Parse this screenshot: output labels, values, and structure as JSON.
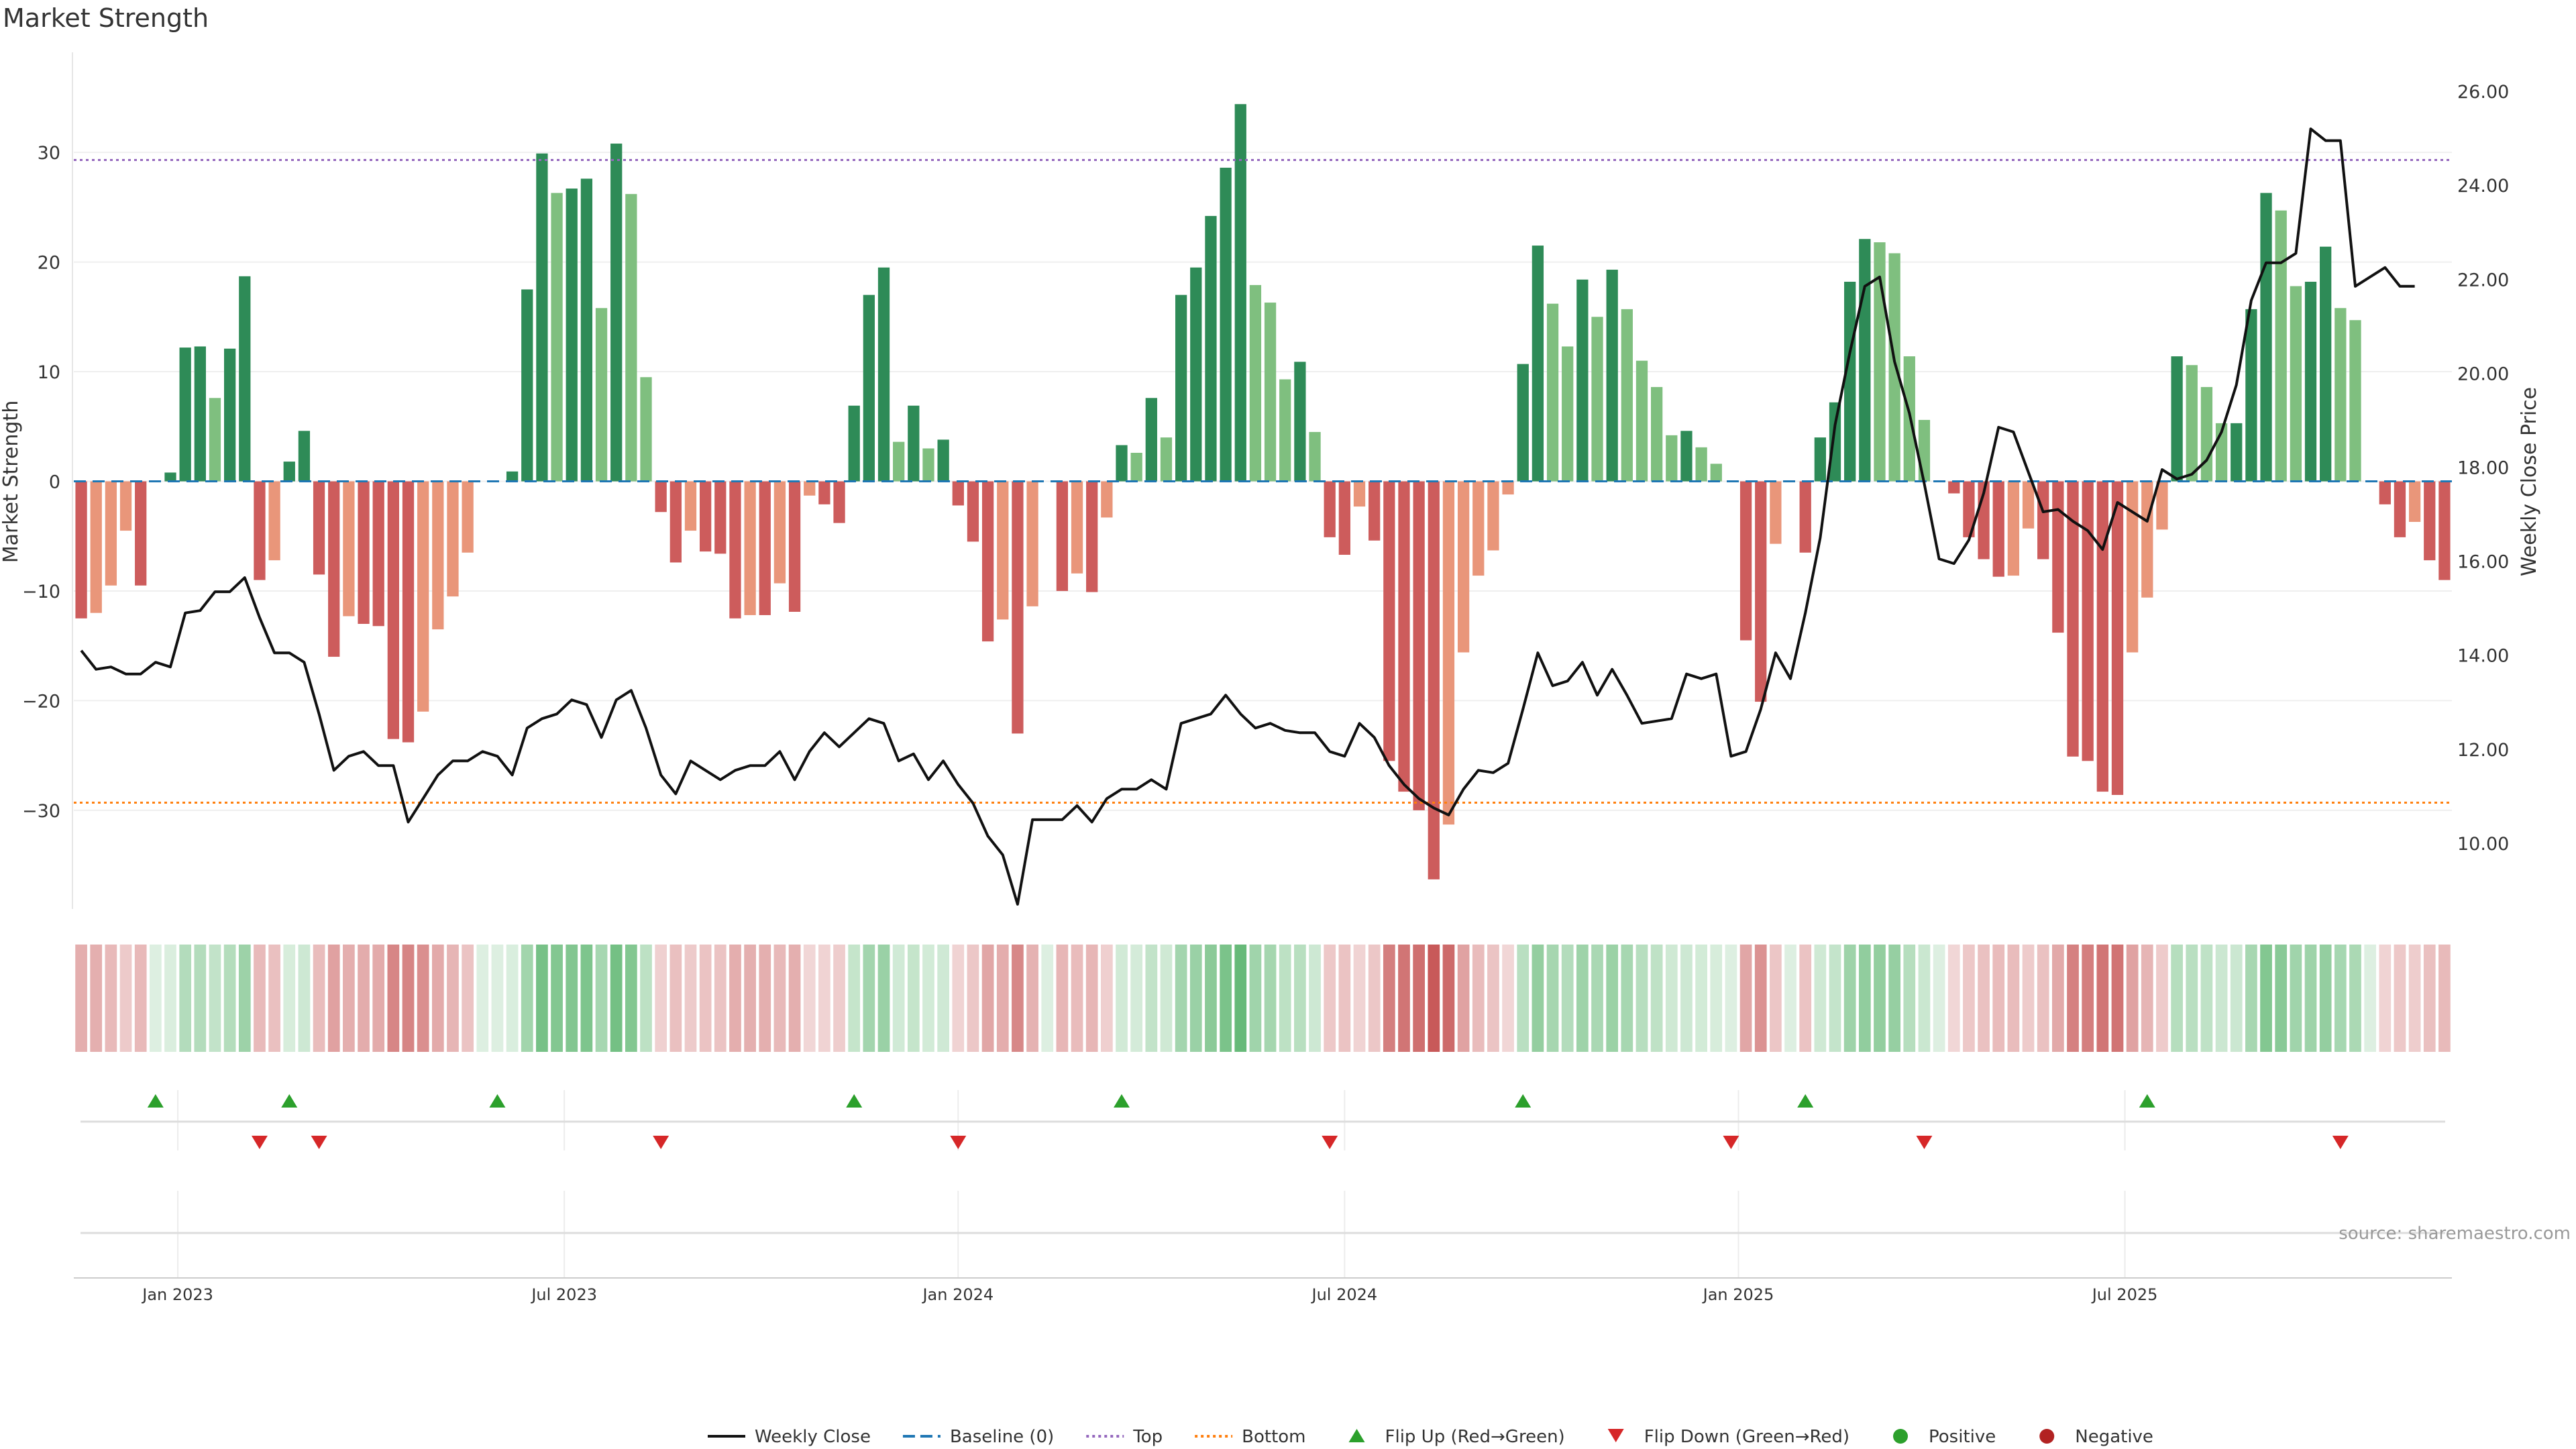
{
  "title": "Market Strength",
  "source_note": "source: sharemaestro.com",
  "colors": {
    "strong_green": "#2e8b57",
    "light_green": "#7fbf7f",
    "strong_red": "#cd5c5c",
    "light_red": "#e9967a",
    "price_line": "#111111",
    "baseline": "#1f77b4",
    "top_line": "#9467bd",
    "bottom_line": "#ff7f0e",
    "flip_up": "#2ca02c",
    "flip_down": "#d62728",
    "positive": "#2ca02c",
    "negative": "#b22222"
  },
  "chart_data": {
    "type": "bar",
    "title": "Market Strength",
    "ylabel": "Market Strength",
    "y2label": "Weekly Close Price",
    "ylim": [
      -39,
      39
    ],
    "y2lim": [
      8.6,
      26.8
    ],
    "yticks": [
      -30,
      -20,
      -10,
      0,
      10,
      20,
      30
    ],
    "y2ticks": [
      10,
      12,
      14,
      16,
      18,
      20,
      22,
      24,
      26
    ],
    "y2tick_labels": [
      "10.00",
      "12.00",
      "14.00",
      "16.00",
      "18.00",
      "20.00",
      "22.00",
      "24.00",
      "26.00"
    ],
    "top": 29.3,
    "bottom": -29.3,
    "x_tick_labels": [
      {
        "label": "Jan 2023",
        "week": 7
      },
      {
        "label": "Jul 2023",
        "week": 33
      },
      {
        "label": "Jan 2024",
        "week": 59.5
      },
      {
        "label": "Jul 2024",
        "week": 85.5
      },
      {
        "label": "Jan 2025",
        "week": 112
      },
      {
        "label": "Jul 2025",
        "week": 138
      }
    ],
    "strength": [
      -12.5,
      -12,
      -9.5,
      -4.5,
      -9.5,
      0,
      0.8,
      12.2,
      12.3,
      7.6,
      12.1,
      18.7,
      -9,
      -7.2,
      1.8,
      4.6,
      -8.5,
      -16,
      -12.3,
      -13,
      -13.2,
      -23.5,
      -23.8,
      -21,
      -13.5,
      -10.5,
      -6.5,
      0,
      0,
      0.9,
      17.5,
      29.9,
      26.3,
      26.7,
      27.6,
      15.8,
      30.8,
      26.2,
      9.5,
      -2.8,
      -7.4,
      -4.5,
      -6.4,
      -6.6,
      -12.5,
      -12.2,
      -12.2,
      -9.3,
      -11.9,
      -1.3,
      -2.1,
      -3.8,
      6.9,
      17,
      19.5,
      3.6,
      6.9,
      3,
      3.8,
      -2.2,
      -5.5,
      -14.6,
      -12.6,
      -23,
      -11.4,
      0,
      -10,
      -8.4,
      -10.1,
      -3.3,
      3.3,
      2.6,
      7.6,
      4,
      17,
      19.5,
      24.2,
      28.6,
      34.4,
      17.9,
      16.3,
      9.3,
      10.9,
      4.5,
      -5.1,
      -6.7,
      -2.3,
      -5.4,
      -25.5,
      -28.3,
      -30,
      -36.3,
      -31.3,
      -15.6,
      -8.6,
      -6.3,
      -1.2,
      10.7,
      21.5,
      16.2,
      12.3,
      18.4,
      15,
      19.3,
      15.7,
      11,
      8.6,
      4.2,
      4.6,
      3.1,
      1.6,
      0,
      -14.5,
      -20.1,
      -5.7,
      0,
      -6.5,
      4,
      7.2,
      18.2,
      22.1,
      21.8,
      20.8,
      11.4,
      5.6,
      0,
      -1.1,
      -5.1,
      -7.1,
      -8.7,
      -8.6,
      -4.3,
      -7.1,
      -13.8,
      -25.1,
      -25.5,
      -28.3,
      -28.6,
      -15.6,
      -10.6,
      -4.4,
      11.4,
      10.6,
      8.6,
      5.3,
      5.3,
      15.7,
      26.3,
      24.7,
      17.8,
      18.2,
      21.4,
      15.8,
      14.7,
      0,
      -2.1,
      -5.1,
      -3.7,
      -7.2,
      -9
    ],
    "weekly_close": [
      14.1,
      13.7,
      13.75,
      13.6,
      13.6,
      13.85,
      13.75,
      14.9,
      14.95,
      15.35,
      15.35,
      15.65,
      14.8,
      14.05,
      14.05,
      13.85,
      12.75,
      11.55,
      11.85,
      11.95,
      11.65,
      11.65,
      10.45,
      10.95,
      11.45,
      11.75,
      11.75,
      11.95,
      11.85,
      11.45,
      12.45,
      12.65,
      12.75,
      13.05,
      12.95,
      12.25,
      13.05,
      13.25,
      12.45,
      11.45,
      11.05,
      11.75,
      11.55,
      11.35,
      11.55,
      11.65,
      11.65,
      11.95,
      11.35,
      11.95,
      12.35,
      12.05,
      12.35,
      12.65,
      12.55,
      11.75,
      11.9,
      11.35,
      11.75,
      11.25,
      10.85,
      10.15,
      9.75,
      8.7,
      10.5,
      10.5,
      10.5,
      10.8,
      10.45,
      10.95,
      11.15,
      11.15,
      11.35,
      11.15,
      12.55,
      12.65,
      12.75,
      13.15,
      12.75,
      12.45,
      12.55,
      12.4,
      12.35,
      12.35,
      11.95,
      11.85,
      12.55,
      12.25,
      11.65,
      11.25,
      10.95,
      10.75,
      10.6,
      11.15,
      11.55,
      11.5,
      11.7,
      12.85,
      14.05,
      13.35,
      13.45,
      13.85,
      13.15,
      13.7,
      13.15,
      12.55,
      12.6,
      12.65,
      13.6,
      13.5,
      13.6,
      11.85,
      11.95,
      12.85,
      14.05,
      13.5,
      14.9,
      16.5,
      18.9,
      20.45,
      21.85,
      22.05,
      20.25,
      19.15,
      17.65,
      16.05,
      15.95,
      16.45,
      17.45,
      18.85,
      18.75,
      17.9,
      17.05,
      17.1,
      16.85,
      16.65,
      16.25,
      17.25,
      17.05,
      16.85,
      17.95,
      17.75,
      17.85,
      18.15,
      18.75,
      19.75,
      21.55,
      22.35,
      22.35,
      22.55,
      25.2,
      24.95,
      24.95,
      21.85,
      22.05,
      22.25,
      21.85,
      21.85
    ],
    "flip_up_weeks": [
      5,
      14,
      28,
      52,
      70,
      97,
      116,
      139
    ],
    "flip_down_weeks": [
      12,
      16,
      39,
      59,
      84,
      111,
      124,
      152
    ]
  },
  "legend": [
    {
      "label": "Weekly Close",
      "kind": "line",
      "color": "#111111"
    },
    {
      "label": "Baseline (0)",
      "kind": "dashed",
      "color": "#1f77b4"
    },
    {
      "label": "Top",
      "kind": "dotted",
      "color": "#9467bd"
    },
    {
      "label": "Bottom",
      "kind": "dotted",
      "color": "#ff7f0e"
    },
    {
      "label": "Flip Up (Red→Green)",
      "kind": "triangle-up",
      "color": "#2ca02c"
    },
    {
      "label": "Flip Down (Green→Red)",
      "kind": "triangle-down",
      "color": "#d62728"
    },
    {
      "label": "Positive",
      "kind": "dot",
      "color": "#2ca02c"
    },
    {
      "label": "Negative",
      "kind": "dot",
      "color": "#b22222"
    }
  ]
}
